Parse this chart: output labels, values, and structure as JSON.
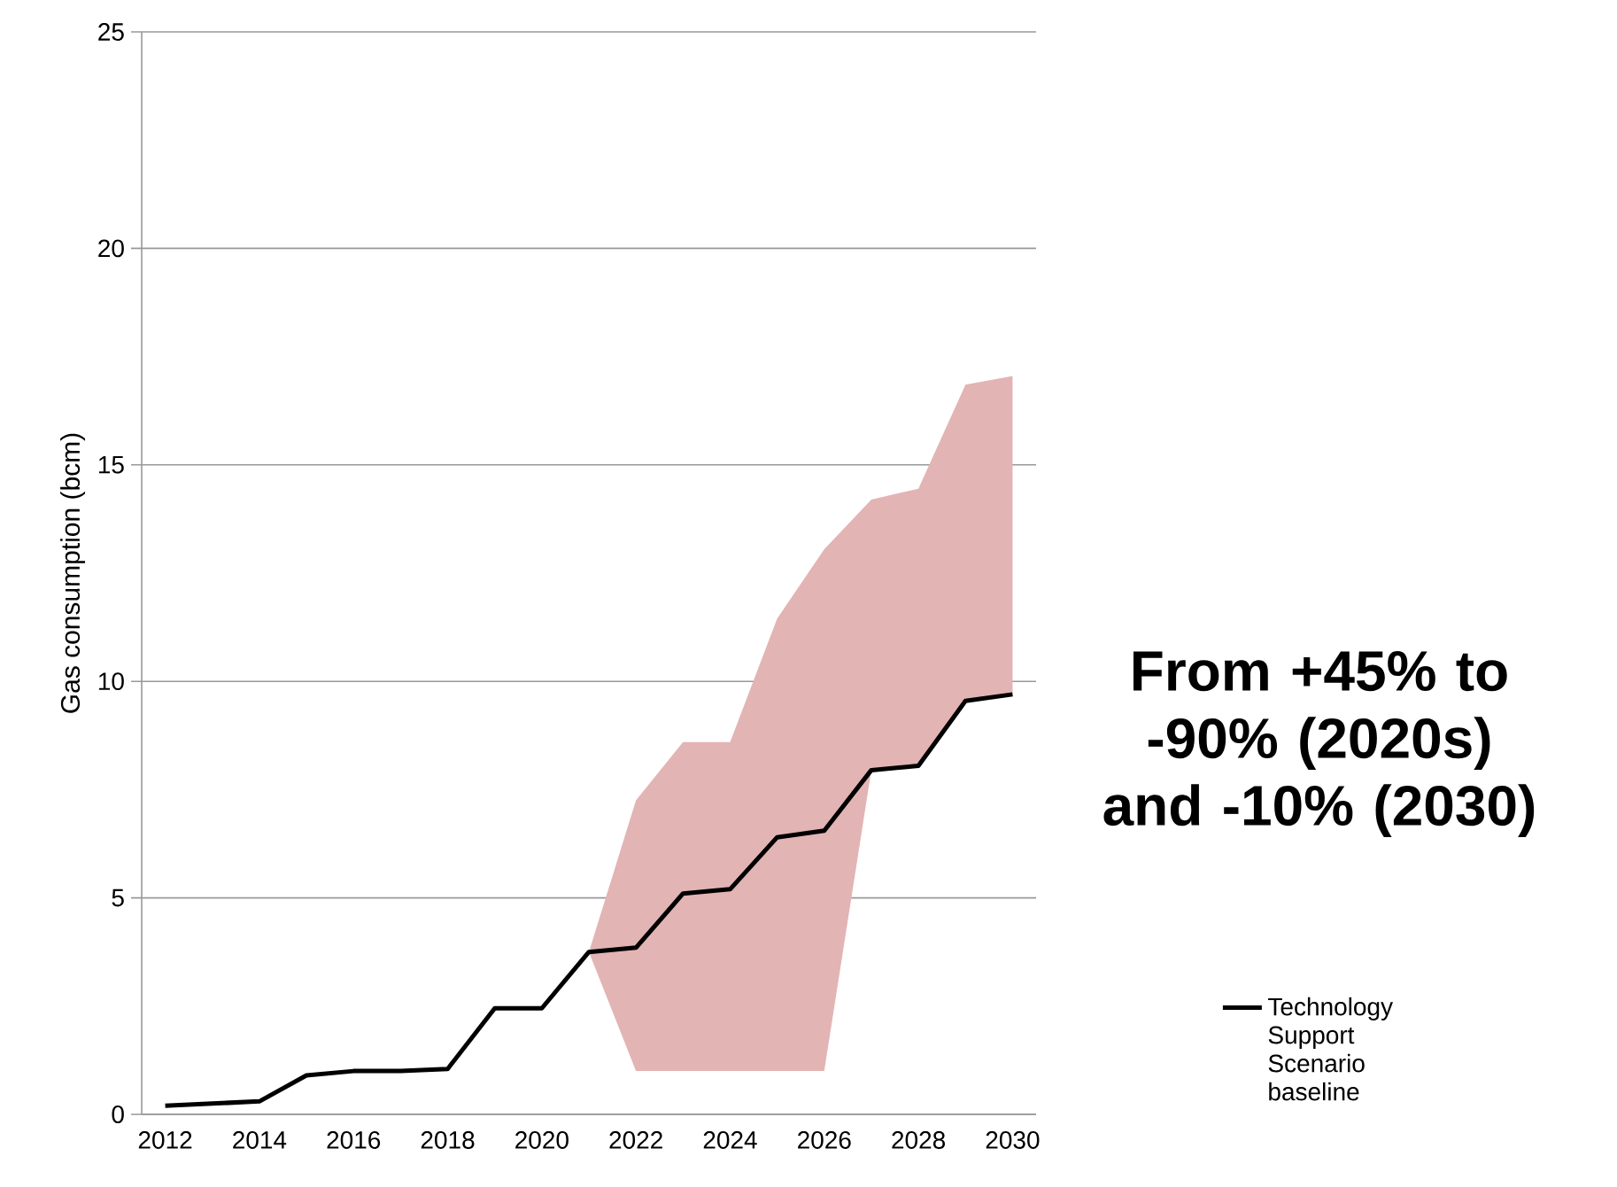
{
  "chart_data": {
    "type": "line",
    "ylabel": "Gas consumption (bcm)",
    "x": [
      2012,
      2013,
      2014,
      2015,
      2016,
      2017,
      2018,
      2019,
      2020,
      2021,
      2022,
      2023,
      2024,
      2025,
      2026,
      2027,
      2028,
      2029,
      2030
    ],
    "series": [
      {
        "name": "Technology Support Scenario baseline",
        "color": "#000000",
        "values": [
          0.2,
          0.25,
          0.3,
          0.9,
          1.0,
          1.0,
          1.05,
          2.45,
          2.45,
          3.75,
          3.85,
          5.1,
          5.2,
          6.4,
          6.55,
          7.95,
          8.05,
          9.55,
          9.7
        ],
        "lower": [
          null,
          null,
          null,
          null,
          null,
          null,
          null,
          null,
          null,
          3.75,
          1.0,
          1.0,
          1.0,
          1.0,
          1.0,
          7.95,
          8.05,
          9.55,
          9.7
        ],
        "upper": [
          null,
          null,
          null,
          null,
          null,
          null,
          null,
          null,
          null,
          3.75,
          7.25,
          8.6,
          8.6,
          11.45,
          13.05,
          14.2,
          14.45,
          16.85,
          17.05
        ]
      }
    ],
    "xlim": [
      2011.5,
      2030.5
    ],
    "ylim": [
      0,
      25
    ],
    "xticks": [
      2012,
      2014,
      2016,
      2018,
      2020,
      2022,
      2024,
      2026,
      2028,
      2030
    ],
    "yticks": [
      0,
      5,
      10,
      15,
      20,
      25
    ],
    "grid": "y",
    "legend": "right",
    "marker": "none",
    "line_style": "solid",
    "annotations": [
      "From +45% to -90% (2020s) and -10% (2030)"
    ]
  }
}
